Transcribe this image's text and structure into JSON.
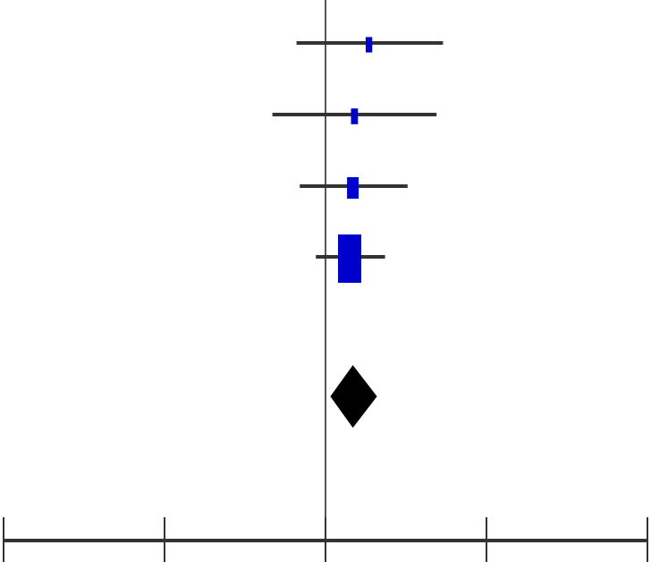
{
  "chart_data": {
    "type": "scatter",
    "subtype": "forest-plot",
    "title": "",
    "xlabel": "",
    "ylabel": "",
    "x_range": [
      -2,
      2
    ],
    "x_ticks": [
      -2,
      -1,
      0,
      1,
      2
    ],
    "x_tick_labels_visible": false,
    "reference_line_x": 0,
    "grid": false,
    "legend": "none",
    "studies": [
      {
        "estimate": 0.27,
        "ci_low": -0.18,
        "ci_high": 0.73,
        "weight": 0.08
      },
      {
        "estimate": 0.18,
        "ci_low": -0.33,
        "ci_high": 0.69,
        "weight": 0.09
      },
      {
        "estimate": 0.17,
        "ci_low": -0.16,
        "ci_high": 0.51,
        "weight": 0.25
      },
      {
        "estimate": 0.15,
        "ci_low": -0.06,
        "ci_high": 0.37,
        "weight": 1.0
      }
    ],
    "pooled": {
      "estimate": 0.17,
      "ci_low": 0.03,
      "ci_high": 0.32
    },
    "colors": {
      "study_marker": "#0000cc",
      "ci_line": "#333333",
      "pooled_marker": "#000000",
      "axis": "#333333",
      "reference_line": "#555555"
    }
  }
}
